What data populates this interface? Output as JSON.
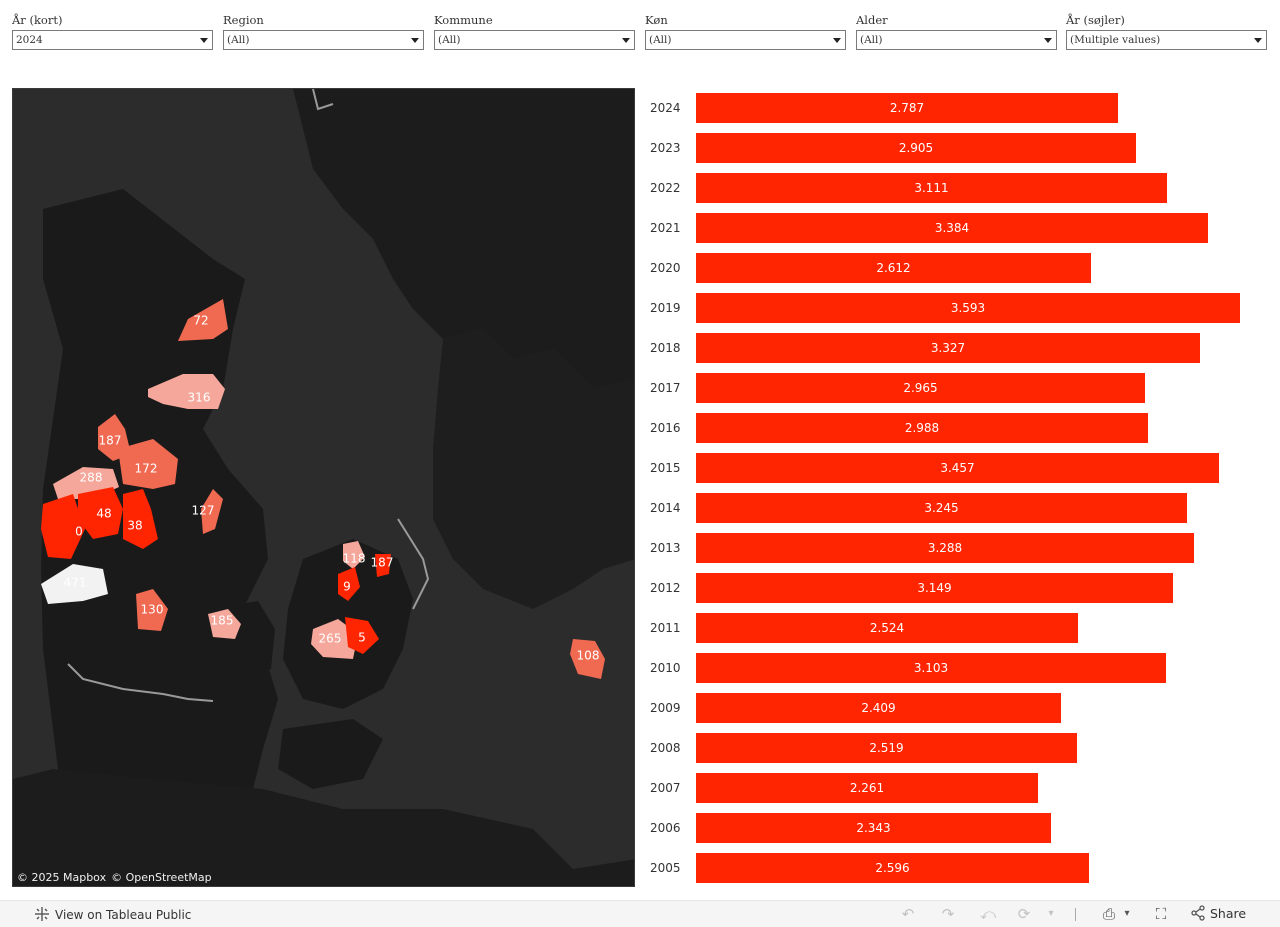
{
  "filters": [
    {
      "label": "År (kort)",
      "value": "2024"
    },
    {
      "label": "Region",
      "value": "(All)"
    },
    {
      "label": "Kommune",
      "value": "(All)"
    },
    {
      "label": "Køn",
      "value": "(All)"
    },
    {
      "label": "Alder",
      "value": "(All)"
    },
    {
      "label": "År (søjler)",
      "value": "(Multiple values)"
    }
  ],
  "map": {
    "attribution": [
      "© 2025 Mapbox",
      "© OpenStreetMap"
    ],
    "region_labels": [
      "72",
      "316",
      "187",
      "172",
      "288",
      "127",
      "48",
      "38",
      "0",
      "471",
      "130",
      "185",
      "118",
      "187",
      "9",
      "265",
      "5",
      "108"
    ],
    "colors": {
      "high": "#ff2500",
      "medium": "#f06a52",
      "low": "#f4a79a",
      "lowest": "#f2f2f2",
      "background": "#2c2c2c",
      "land": "#1a1a1a"
    }
  },
  "chart_data": {
    "type": "bar",
    "orientation": "horizontal",
    "categories": [
      "2024",
      "2023",
      "2022",
      "2021",
      "2020",
      "2019",
      "2018",
      "2017",
      "2016",
      "2015",
      "2014",
      "2013",
      "2012",
      "2011",
      "2010",
      "2009",
      "2008",
      "2007",
      "2006",
      "2005"
    ],
    "values": [
      2787,
      2905,
      3111,
      3384,
      2612,
      3593,
      3327,
      2965,
      2988,
      3457,
      3245,
      3288,
      3149,
      2524,
      3103,
      2409,
      2519,
      2261,
      2343,
      2596
    ],
    "value_labels": [
      "2.787",
      "2.905",
      "3.111",
      "3.384",
      "2.612",
      "3.593",
      "3.327",
      "2.965",
      "2.988",
      "3.457",
      "3.245",
      "3.288",
      "3.149",
      "2.524",
      "3.103",
      "2.409",
      "2.519",
      "2.261",
      "2.343",
      "2.596"
    ],
    "bar_color": "#ff2500",
    "xlim": [
      0,
      3600
    ]
  },
  "footer": {
    "view_link": "View on Tableau Public",
    "share_label": "Share"
  }
}
